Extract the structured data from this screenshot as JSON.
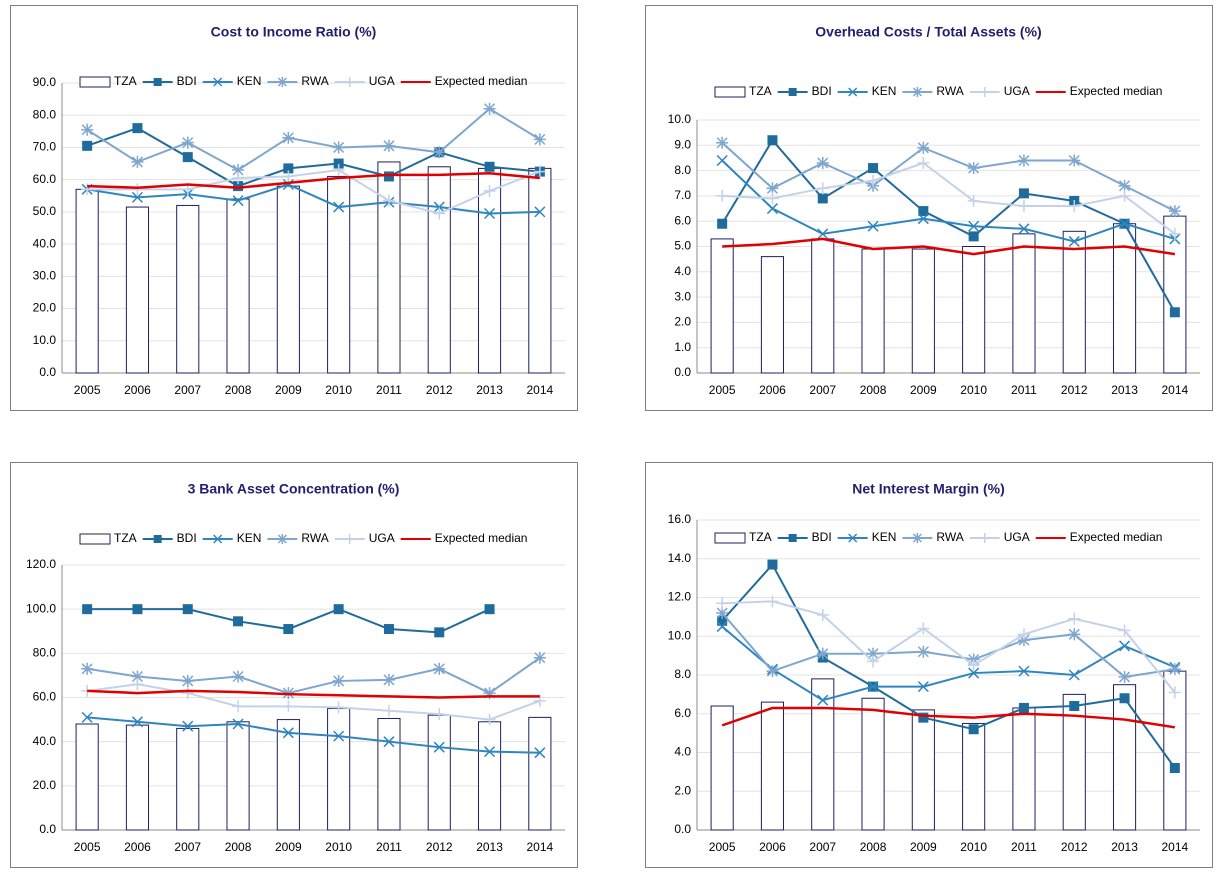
{
  "chart_data": [
    {
      "type": "combo",
      "title": "Cost to Income Ratio (%)",
      "legend": "top",
      "grid": true,
      "categories": [
        "2005",
        "2006",
        "2007",
        "2008",
        "2009",
        "2010",
        "2011",
        "2012",
        "2013",
        "2014"
      ],
      "ylim": [
        0,
        90
      ],
      "yticks": [
        {
          "value": 0,
          "label": "0.0"
        },
        {
          "value": 10,
          "label": "10.0"
        },
        {
          "value": 20,
          "label": "20.0"
        },
        {
          "value": 30,
          "label": "30.0"
        },
        {
          "value": 40,
          "label": "40.0"
        },
        {
          "value": 50,
          "label": "50.0"
        },
        {
          "value": 60,
          "label": "60.0"
        },
        {
          "value": 70,
          "label": "70.0"
        },
        {
          "value": 80,
          "label": "80.0"
        },
        {
          "value": 90,
          "label": "90.0"
        }
      ],
      "series": [
        {
          "name": "TZA",
          "kind": "bar",
          "color": "#1f1f5e",
          "values": [
            57,
            51.5,
            52,
            54,
            58,
            61,
            65.5,
            64,
            63.5,
            63.5
          ]
        },
        {
          "name": "BDI",
          "kind": "line",
          "marker": "square",
          "color": "#1f6b9c",
          "values": [
            70.5,
            76,
            67,
            58,
            63.5,
            65,
            61,
            68.5,
            64,
            62.5
          ]
        },
        {
          "name": "KEN",
          "kind": "line",
          "marker": "x",
          "color": "#2f86bf",
          "values": [
            57,
            54.5,
            55.5,
            53.5,
            58.5,
            51.5,
            53,
            51.5,
            49.5,
            50
          ]
        },
        {
          "name": "RWA",
          "kind": "line",
          "marker": "star",
          "color": "#7ea6cf",
          "values": [
            75.5,
            65.5,
            71.5,
            63,
            73,
            70,
            70.5,
            68.5,
            82,
            72.5
          ]
        },
        {
          "name": "UGA",
          "kind": "line",
          "marker": "plus",
          "color": "#c3d2e8",
          "values": [
            57,
            57,
            57,
            60.5,
            61,
            63,
            53.5,
            49.5,
            56.5,
            62.5
          ]
        },
        {
          "name": "Expected median",
          "kind": "line",
          "marker": "none",
          "color": "#e00000",
          "values": [
            58,
            57.5,
            58.5,
            57.5,
            59,
            60.5,
            61.5,
            61.5,
            62,
            60.5
          ]
        }
      ]
    },
    {
      "type": "combo",
      "title": "Overhead Costs / Total Assets (%)",
      "legend": "top",
      "grid": true,
      "categories": [
        "2005",
        "2006",
        "2007",
        "2008",
        "2009",
        "2010",
        "2011",
        "2012",
        "2013",
        "2014"
      ],
      "ylim": [
        0,
        10
      ],
      "yticks": [
        {
          "value": 0,
          "label": "0.0"
        },
        {
          "value": 1,
          "label": "1.0"
        },
        {
          "value": 2,
          "label": "2.0"
        },
        {
          "value": 3,
          "label": "3.0"
        },
        {
          "value": 4,
          "label": "4.0"
        },
        {
          "value": 5,
          "label": "5.0"
        },
        {
          "value": 6,
          "label": "6.0"
        },
        {
          "value": 7,
          "label": "7.0"
        },
        {
          "value": 8,
          "label": "8.0"
        },
        {
          "value": 9,
          "label": "9.0"
        },
        {
          "value": 10,
          "label": "10.0"
        }
      ],
      "series": [
        {
          "name": "TZA",
          "kind": "bar",
          "color": "#1f1f5e",
          "values": [
            5.3,
            4.6,
            5.3,
            4.9,
            4.9,
            5.0,
            5.5,
            5.6,
            5.9,
            6.2
          ]
        },
        {
          "name": "BDI",
          "kind": "line",
          "marker": "square",
          "color": "#1f6b9c",
          "values": [
            5.9,
            9.2,
            6.9,
            8.1,
            6.4,
            5.4,
            7.1,
            6.8,
            5.9,
            2.4
          ]
        },
        {
          "name": "KEN",
          "kind": "line",
          "marker": "x",
          "color": "#2f86bf",
          "values": [
            8.4,
            6.5,
            5.5,
            5.8,
            6.1,
            5.8,
            5.7,
            5.2,
            5.9,
            5.3
          ]
        },
        {
          "name": "RWA",
          "kind": "line",
          "marker": "star",
          "color": "#7ea6cf",
          "values": [
            9.1,
            7.3,
            8.3,
            7.4,
            8.9,
            8.1,
            8.4,
            8.4,
            7.4,
            6.4
          ]
        },
        {
          "name": "UGA",
          "kind": "line",
          "marker": "plus",
          "color": "#c3d2e8",
          "values": [
            7.0,
            6.9,
            7.3,
            7.6,
            8.3,
            6.8,
            6.6,
            6.6,
            7.0,
            5.5
          ]
        },
        {
          "name": "Expected median",
          "kind": "line",
          "marker": "none",
          "color": "#e00000",
          "values": [
            5.0,
            5.1,
            5.3,
            4.9,
            5.0,
            4.7,
            5.0,
            4.9,
            5.0,
            4.7
          ]
        }
      ]
    },
    {
      "type": "combo",
      "title": "3 Bank Asset Concentration (%)",
      "legend": "top",
      "grid": true,
      "categories": [
        "2005",
        "2006",
        "2007",
        "2008",
        "2009",
        "2010",
        "2011",
        "2012",
        "2013",
        "2014"
      ],
      "ylim": [
        0,
        120
      ],
      "yticks": [
        {
          "value": 0,
          "label": "0.0"
        },
        {
          "value": 20,
          "label": "20.0"
        },
        {
          "value": 40,
          "label": "40.0"
        },
        {
          "value": 60,
          "label": "60.0"
        },
        {
          "value": 80,
          "label": "80.0"
        },
        {
          "value": 100,
          "label": "100.0"
        },
        {
          "value": 120,
          "label": "120.0"
        }
      ],
      "series": [
        {
          "name": "TZA",
          "kind": "bar",
          "color": "#1f1f5e",
          "values": [
            48,
            47.5,
            46,
            49,
            50,
            55,
            50.5,
            52,
            49,
            51
          ]
        },
        {
          "name": "BDI",
          "kind": "line",
          "marker": "square",
          "color": "#1f6b9c",
          "values": [
            100,
            100,
            100,
            94.5,
            91,
            100,
            91,
            89.5,
            100,
            null
          ]
        },
        {
          "name": "KEN",
          "kind": "line",
          "marker": "x",
          "color": "#2f86bf",
          "values": [
            51,
            49,
            47,
            48,
            44,
            42.5,
            40,
            37.5,
            35.5,
            35
          ]
        },
        {
          "name": "RWA",
          "kind": "line",
          "marker": "star",
          "color": "#7ea6cf",
          "values": [
            73,
            69.5,
            67.5,
            69.5,
            62,
            67.5,
            68,
            73,
            62,
            78
          ]
        },
        {
          "name": "UGA",
          "kind": "line",
          "marker": "plus",
          "color": "#c3d2e8",
          "values": [
            63,
            66,
            62,
            56,
            56,
            55.5,
            54,
            52.5,
            50,
            58.5
          ]
        },
        {
          "name": "Expected median",
          "kind": "line",
          "marker": "none",
          "color": "#e00000",
          "values": [
            63,
            62,
            63,
            62.5,
            61.5,
            61,
            60.5,
            60,
            60.5,
            60.5
          ]
        }
      ]
    },
    {
      "type": "combo",
      "title": "Net Interest Margin (%)",
      "legend": "top",
      "grid": true,
      "categories": [
        "2005",
        "2006",
        "2007",
        "2008",
        "2009",
        "2010",
        "2011",
        "2012",
        "2013",
        "2014"
      ],
      "ylim": [
        0,
        16
      ],
      "yticks": [
        {
          "value": 0,
          "label": "0.0"
        },
        {
          "value": 2,
          "label": "2.0"
        },
        {
          "value": 4,
          "label": "4.0"
        },
        {
          "value": 6,
          "label": "6.0"
        },
        {
          "value": 8,
          "label": "8.0"
        },
        {
          "value": 10,
          "label": "10.0"
        },
        {
          "value": 12,
          "label": "12.0"
        },
        {
          "value": 14,
          "label": "14.0"
        },
        {
          "value": 16,
          "label": "16.0"
        }
      ],
      "series": [
        {
          "name": "TZA",
          "kind": "bar",
          "color": "#1f1f5e",
          "values": [
            6.4,
            6.6,
            7.8,
            6.8,
            6.2,
            5.5,
            6.3,
            7.0,
            7.5,
            8.2
          ]
        },
        {
          "name": "BDI",
          "kind": "line",
          "marker": "square",
          "color": "#1f6b9c",
          "values": [
            10.8,
            13.7,
            8.9,
            7.4,
            5.8,
            5.2,
            6.3,
            6.4,
            6.8,
            3.2
          ]
        },
        {
          "name": "KEN",
          "kind": "line",
          "marker": "x",
          "color": "#2f86bf",
          "values": [
            10.5,
            8.3,
            6.7,
            7.4,
            7.4,
            8.1,
            8.2,
            8.0,
            9.5,
            8.4
          ]
        },
        {
          "name": "RWA",
          "kind": "line",
          "marker": "star",
          "color": "#7ea6cf",
          "values": [
            11.2,
            8.2,
            9.1,
            9.1,
            9.2,
            8.8,
            9.8,
            10.1,
            7.9,
            8.3
          ]
        },
        {
          "name": "UGA",
          "kind": "line",
          "marker": "plus",
          "color": "#c3d2e8",
          "values": [
            11.7,
            11.8,
            11.1,
            8.7,
            10.4,
            8.5,
            10.1,
            10.9,
            10.3,
            7.1
          ]
        },
        {
          "name": "Expected median",
          "kind": "line",
          "marker": "none",
          "color": "#e00000",
          "values": [
            5.4,
            6.3,
            6.3,
            6.2,
            5.9,
            5.8,
            6.0,
            5.9,
            5.7,
            5.3
          ]
        }
      ]
    }
  ]
}
